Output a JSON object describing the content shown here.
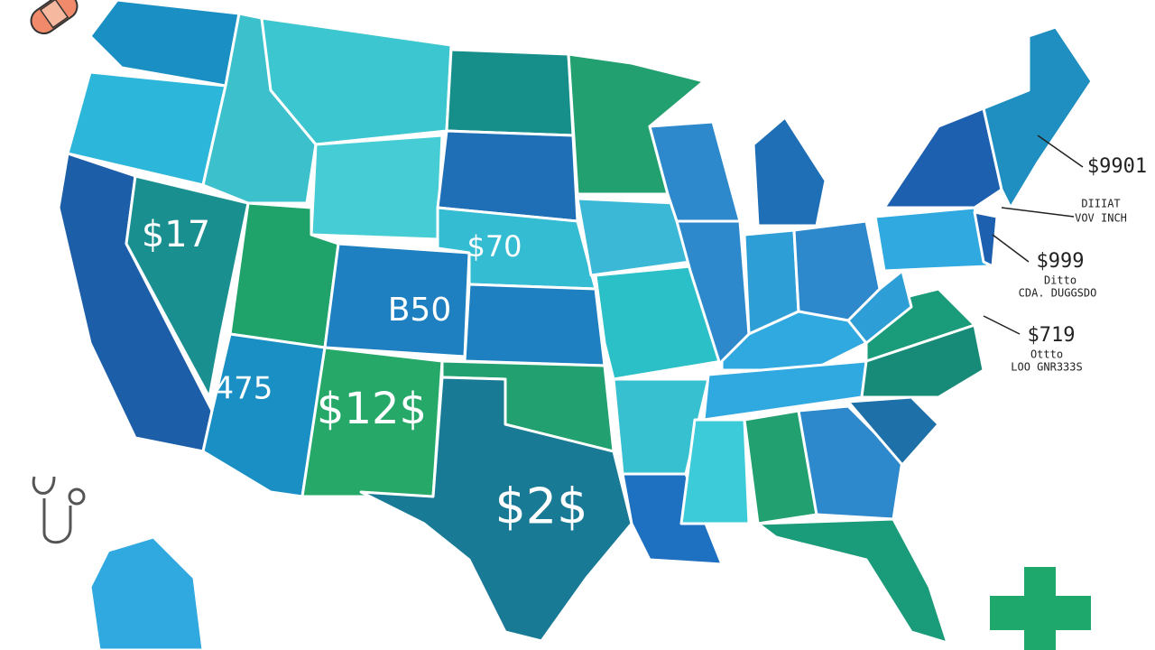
{
  "map": {
    "state_labels": [
      "$17",
      "$70",
      "B50",
      "475",
      "$12$",
      "$2$"
    ],
    "callouts": [
      {
        "price": "$9901",
        "line1": "DIIIAT",
        "line2": "VOV INCH"
      },
      {
        "price": "$999",
        "line1": "Ditto",
        "line2": "CDA. DUGGSDO"
      },
      {
        "price": "$719",
        "line1": "Ottto",
        "line2": "LOO GNR333S"
      }
    ]
  }
}
